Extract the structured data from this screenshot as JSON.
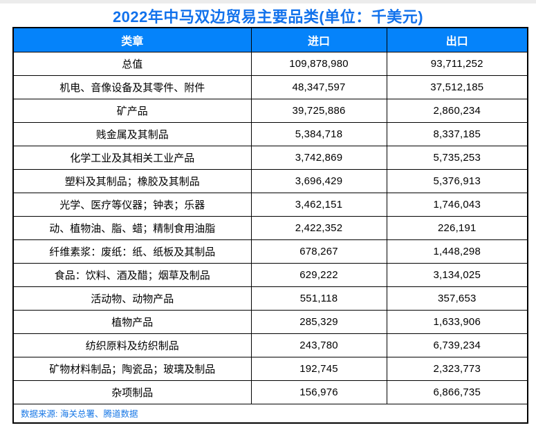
{
  "title": "2022年中马双边贸易主要品类(单位：千美元)",
  "colors": {
    "title_text": "#1272ec",
    "header_bg": "#0583fa",
    "header_text": "#ffffff",
    "grid_border": "#000000",
    "source_text": "#1777e6",
    "top_strip": "#ececec"
  },
  "table": {
    "headers": [
      "类章",
      "进口",
      "出口"
    ],
    "rows": [
      [
        "总值",
        "109,878,980",
        "93,711,252"
      ],
      [
        "机电、音像设备及其零件、附件",
        "48,347,597",
        "37,512,185"
      ],
      [
        "矿产品",
        "39,725,886",
        "2,860,234"
      ],
      [
        "贱金属及其制品",
        "5,384,718",
        "8,337,185"
      ],
      [
        "化学工业及其相关工业产品",
        "3,742,869",
        "5,735,253"
      ],
      [
        "塑料及其制品；橡胶及其制品",
        "3,696,429",
        "5,376,913"
      ],
      [
        "光学、医疗等仪器；钟表；乐器",
        "3,462,151",
        "1,746,043"
      ],
      [
        "动、植物油、脂、蜡；精制食用油脂",
        "2,422,352",
        "226,191"
      ],
      [
        "纤维素浆：废纸：纸、纸板及其制品",
        "678,267",
        "1,448,298"
      ],
      [
        "食品：饮料、酒及醋；烟草及制品",
        "629,222",
        "3,134,025"
      ],
      [
        "活动物、动物产品",
        "551,118",
        "357,653"
      ],
      [
        "植物产品",
        "285,329",
        "1,633,906"
      ],
      [
        "纺织原料及纺织制品",
        "243,780",
        "6,739,234"
      ],
      [
        "矿物材料制品；陶瓷品；玻璃及制品",
        "192,745",
        "2,323,773"
      ],
      [
        "杂项制品",
        "156,976",
        "6,866,735"
      ]
    ]
  },
  "source": "数据来源: 海关总署、腾道数据",
  "chart_data": {
    "type": "table",
    "title": "2022年中马双边贸易主要品类(单位：千美元)",
    "unit": "千美元",
    "columns": [
      "类章",
      "进口",
      "出口"
    ],
    "categories": [
      "总值",
      "机电、音像设备及其零件、附件",
      "矿产品",
      "贱金属及其制品",
      "化学工业及其相关工业产品",
      "塑料及其制品；橡胶及其制品",
      "光学、医疗等仪器；钟表；乐器",
      "动、植物油、脂、蜡；精制食用油脂",
      "纤维素浆：废纸：纸、纸板及其制品",
      "食品：饮料、酒及醋；烟草及制品",
      "活动物、动物产品",
      "植物产品",
      "纺织原料及纺织制品",
      "矿物材料制品；陶瓷品；玻璃及制品",
      "杂项制品"
    ],
    "series": [
      {
        "name": "进口",
        "values": [
          109878980,
          48347597,
          39725886,
          5384718,
          3742869,
          3696429,
          3462151,
          2422352,
          678267,
          629222,
          551118,
          285329,
          243780,
          192745,
          156976
        ]
      },
      {
        "name": "出口",
        "values": [
          93711252,
          37512185,
          2860234,
          8337185,
          5735253,
          5376913,
          1746043,
          226191,
          1448298,
          3134025,
          357653,
          1633906,
          6739234,
          2323773,
          6866735
        ]
      }
    ],
    "source": "数据来源: 海关总署、腾道数据"
  }
}
